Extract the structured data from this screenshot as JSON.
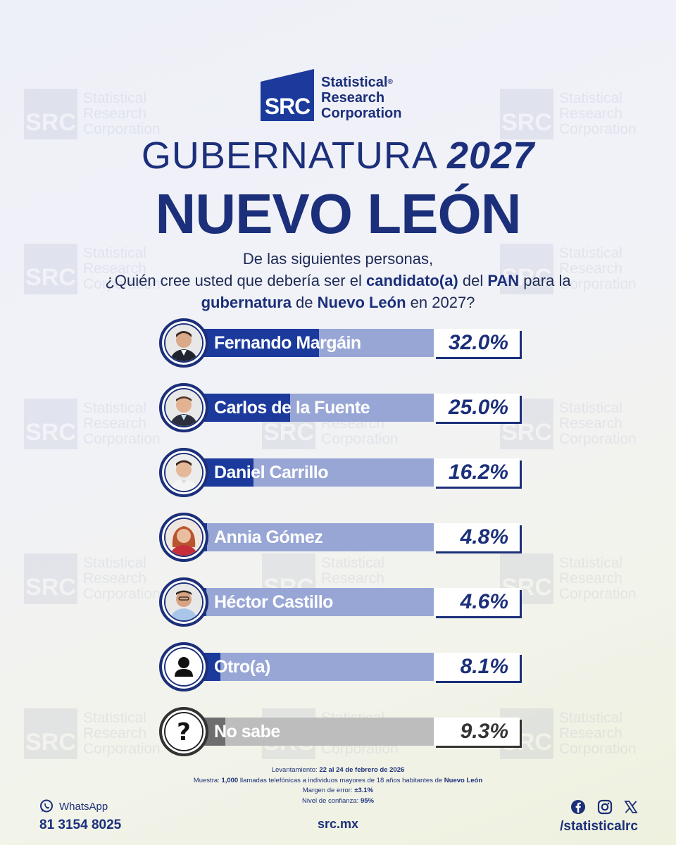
{
  "brand": {
    "abbr": "SRC",
    "line1": "Statistical",
    "reg": "®",
    "line2": "Research",
    "line3": "Corporation"
  },
  "header": {
    "title_prefix": "GUBERNATURA",
    "title_year": "2027",
    "subtitle": "NUEVO LEÓN"
  },
  "question": {
    "line1": "De las siguientes personas,",
    "l2a": "¿Quién cree usted que debería ser el ",
    "l2b": "candidato(a)",
    "l2c": " del ",
    "l2d": "PAN",
    "l2e": " para la",
    "l3a": "gubernatura",
    "l3b": " de ",
    "l3c": "Nuevo León",
    "l3d": " en 2027?"
  },
  "chart_data": {
    "type": "bar",
    "orientation": "horizontal",
    "title": "GUBERNATURA 2027 NUEVO LEÓN",
    "categories": [
      "Fernando Margáin",
      "Carlos de la Fuente",
      "Daniel Carrillo",
      "Annia Gómez",
      "Héctor Castillo",
      "Otro(a)",
      "No sabe"
    ],
    "values": [
      32.0,
      25.0,
      16.2,
      4.8,
      4.6,
      8.1,
      9.3
    ],
    "labels": [
      "32.0%",
      "25.0%",
      "16.2%",
      "4.8%",
      "4.6%",
      "8.1%",
      "9.3%"
    ],
    "xlim": [
      0,
      60
    ],
    "unit": "%"
  },
  "footnote": {
    "lev_label": "Levantamiento: ",
    "lev_value": "22 al 24 de febrero de 2026",
    "muestra_label": "Muestra: ",
    "muestra_n": "1,000",
    "muestra_text": " llamadas telefónicas a individuos mayores de 18 años habitantes de ",
    "muestra_place": "Nuevo León",
    "margen_label": "Margen de error: ",
    "margen_value": "±3.1%",
    "nivel_label": "Nivel de confianza: ",
    "nivel_value": "95%"
  },
  "footer": {
    "whatsapp_label": "WhatsApp",
    "phone": "81 3154 8025",
    "site": "src.mx",
    "handle": "/statisticalrc"
  }
}
